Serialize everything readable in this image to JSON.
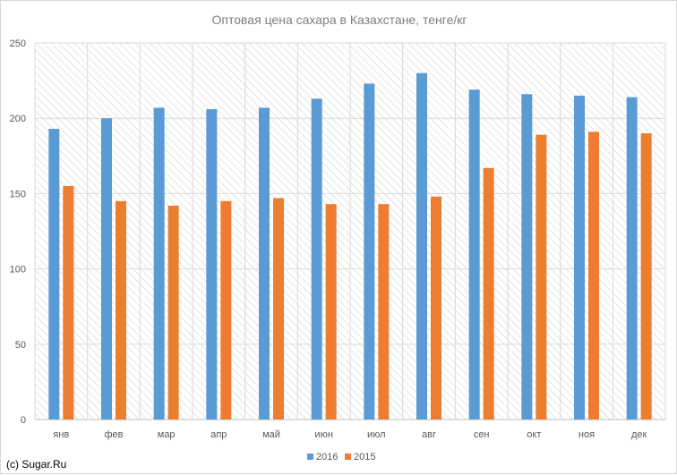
{
  "chart_data": {
    "type": "bar",
    "title": "Оптовая цена сахара в Казахстане, тенге/кг",
    "categories": [
      "янв",
      "фев",
      "мар",
      "апр",
      "май",
      "июн",
      "июл",
      "авг",
      "сен",
      "окт",
      "ноя",
      "дек"
    ],
    "series": [
      {
        "name": "2016",
        "color": "#5b9bd5",
        "values": [
          193,
          200,
          207,
          206,
          207,
          213,
          223,
          230,
          219,
          216,
          215,
          214
        ]
      },
      {
        "name": "2015",
        "color": "#ed7d31",
        "values": [
          155,
          145,
          142,
          145,
          147,
          143,
          143,
          148,
          167,
          189,
          191,
          190
        ]
      }
    ],
    "ylim": [
      0,
      250
    ],
    "yticks": [
      "0",
      "50",
      "100",
      "150",
      "200",
      "250"
    ],
    "ytick_values": [
      0,
      50,
      100,
      150,
      200,
      250
    ],
    "grid": true,
    "legend_position": "bottom-center",
    "xlabel": "",
    "ylabel": ""
  },
  "credit": "(c) Sugar.Ru"
}
